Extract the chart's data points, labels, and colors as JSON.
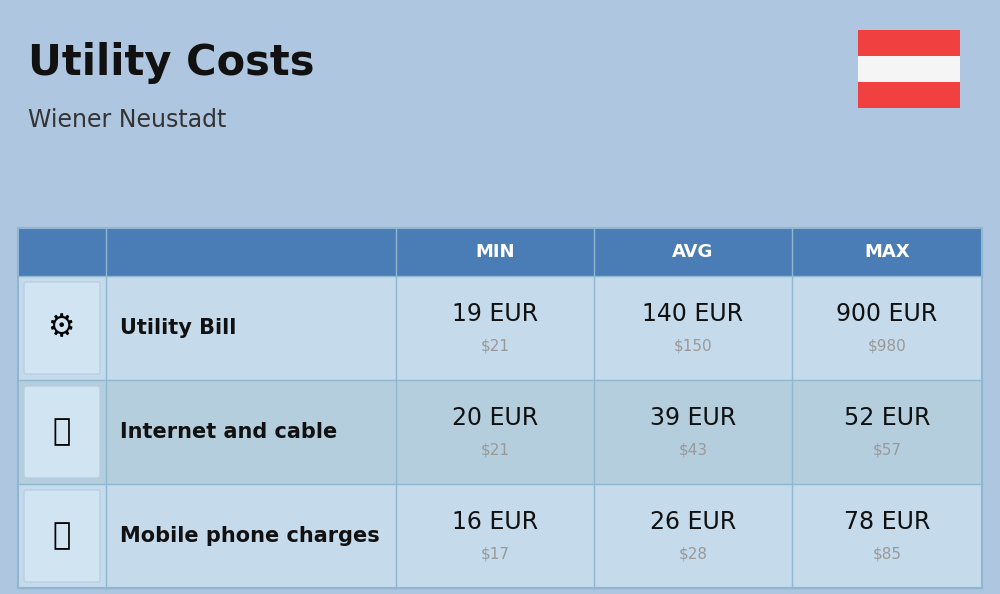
{
  "title": "Utility Costs",
  "subtitle": "Wiener Neustadt",
  "background_color": "#aec6e0",
  "header_bg_color": "#4a7db5",
  "header_text_color": "#ffffff",
  "row_bg_color_1": "#c5daea",
  "row_bg_color_2": "#b5cede",
  "col_headers": [
    "MIN",
    "AVG",
    "MAX"
  ],
  "rows": [
    {
      "label": "Utility Bill",
      "min_eur": "19 EUR",
      "min_usd": "$21",
      "avg_eur": "140 EUR",
      "avg_usd": "$150",
      "max_eur": "900 EUR",
      "max_usd": "$980",
      "icon": "utility"
    },
    {
      "label": "Internet and cable",
      "min_eur": "20 EUR",
      "min_usd": "$21",
      "avg_eur": "39 EUR",
      "avg_usd": "$43",
      "max_eur": "52 EUR",
      "max_usd": "$57",
      "icon": "internet"
    },
    {
      "label": "Mobile phone charges",
      "min_eur": "16 EUR",
      "min_usd": "$17",
      "avg_eur": "26 EUR",
      "avg_usd": "$28",
      "max_eur": "78 EUR",
      "max_usd": "$85",
      "icon": "mobile"
    }
  ],
  "flag_red": "#f04040",
  "flag_white": "#f5f5f5",
  "title_fontsize": 30,
  "subtitle_fontsize": 17,
  "header_fontsize": 13,
  "cell_eur_fontsize": 17,
  "cell_usd_fontsize": 11,
  "label_fontsize": 15
}
